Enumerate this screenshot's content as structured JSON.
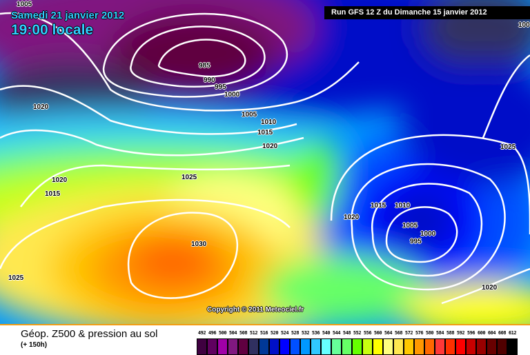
{
  "header": {
    "date": "Samedi 21 janvier 2012",
    "time": "19:00 locale",
    "run": "Run GFS 12 Z du Dimanche 15 janvier 2012"
  },
  "map": {
    "copyright": "Copyright © 2011 Meteociel.fr",
    "pressure_labels": [
      "1005",
      "985",
      "990",
      "995",
      "1000",
      "1020",
      "1005",
      "1010",
      "1015",
      "1020",
      "1025",
      "1020",
      "1015",
      "1030",
      "1025",
      "1025",
      "1015",
      "1010",
      "1020",
      "1005",
      "1000",
      "995",
      "1020",
      "100"
    ]
  },
  "footer": {
    "title": "Géop. Z500 & pression au sol",
    "subtitle": "(+ 150h)"
  },
  "legend": {
    "labels": [
      "492",
      "496",
      "500",
      "504",
      "508",
      "512",
      "516",
      "520",
      "524",
      "528",
      "532",
      "536",
      "540",
      "544",
      "548",
      "552",
      "556",
      "560",
      "564",
      "568",
      "572",
      "576",
      "580",
      "584",
      "588",
      "592",
      "596",
      "600",
      "604",
      "608",
      "612"
    ],
    "colors": [
      "#3f0040",
      "#5f005f",
      "#a000a8",
      "#801880",
      "#600040",
      "#303060",
      "#003898",
      "#0010c8",
      "#0000ff",
      "#0050ff",
      "#0098ff",
      "#30c8ff",
      "#66ffff",
      "#66ff99",
      "#66ff66",
      "#66ff00",
      "#c8ff10",
      "#ffff00",
      "#ffff80",
      "#ffe850",
      "#ffc800",
      "#ff9800",
      "#ff6800",
      "#ff3838",
      "#ff3000",
      "#ff0000",
      "#c80000",
      "#980000",
      "#680000",
      "#500000",
      "#000000"
    ]
  }
}
